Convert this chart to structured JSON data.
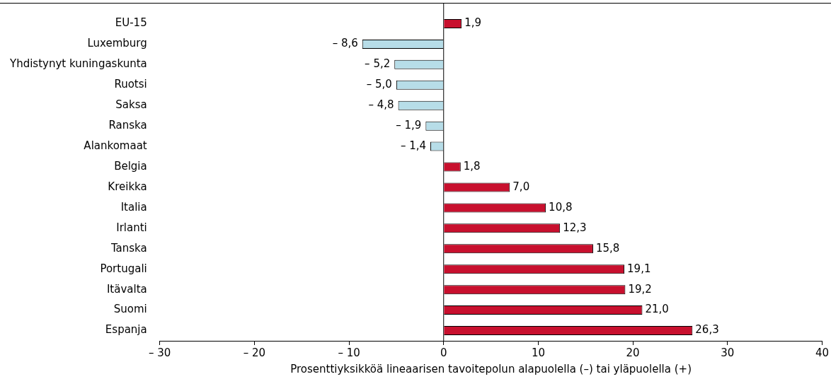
{
  "chart_data": {
    "type": "bar",
    "orientation": "horizontal",
    "xlabel": "Prosenttiyksikköä lineaarisen tavoitepolun alapuolella (–) tai yläpuolella (+)",
    "categories": [
      "EU-15",
      "Luxemburg",
      "Yhdistynyt kuningaskunta",
      "Ruotsi",
      "Saksa",
      "Ranska",
      "Alankomaat",
      "Belgia",
      "Kreikka",
      "Italia",
      "Irlanti",
      "Tanska",
      "Portugali",
      "Itävalta",
      "Suomi",
      "Espanja"
    ],
    "values": [
      1.9,
      -8.6,
      -5.2,
      -5.0,
      -4.8,
      -1.9,
      -1.4,
      1.8,
      7.0,
      10.8,
      12.3,
      15.8,
      19.1,
      19.2,
      21.0,
      26.3
    ],
    "colors": [
      "#c8102e",
      "#b7dde8",
      "#b7dde8",
      "#b7dde8",
      "#b7dde8",
      "#b7dde8",
      "#b7dde8",
      "#c8102e",
      "#c8102e",
      "#c8102e",
      "#c8102e",
      "#c8102e",
      "#c8102e",
      "#c8102e",
      "#c8102e",
      "#c8102e"
    ],
    "value_labels": [
      "1,9",
      "– 8,6",
      "– 5,2",
      "– 5,0",
      "– 4,8",
      "– 1,9",
      "– 1,4",
      "1,8",
      "7,0",
      "10,8",
      "12,3",
      "15,8",
      "19,1",
      "19,2",
      "21,0",
      "26,3"
    ],
    "xlim": [
      -30,
      40
    ],
    "xticks": [
      {
        "value": -30,
        "label": "– 30"
      },
      {
        "value": -20,
        "label": "– 20"
      },
      {
        "value": -10,
        "label": "– 10"
      },
      0,
      10,
      20,
      30,
      40
    ],
    "ref_lines": [
      {
        "axis": "x",
        "value": 0,
        "color": "#000000"
      }
    ],
    "grid": false,
    "legend": false
  }
}
